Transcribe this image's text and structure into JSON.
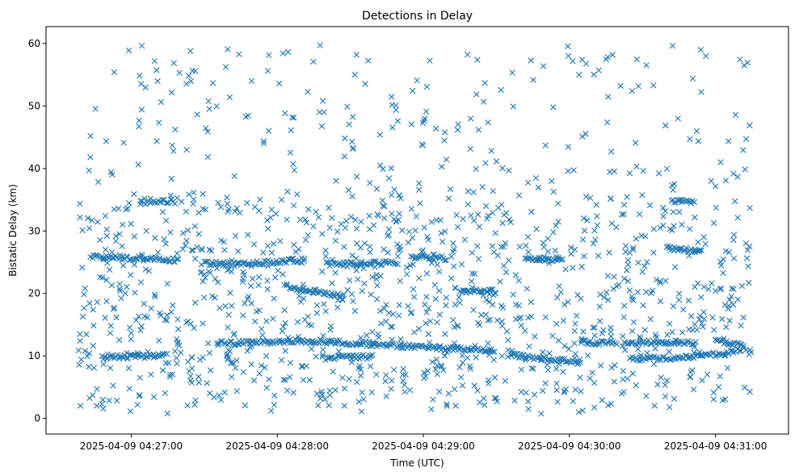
{
  "chart_data": {
    "type": "scatter",
    "title": "Detections in Delay",
    "xlabel": "Time (UTC)",
    "ylabel": "Bistatic Delay (km)",
    "x_ticks": [
      "2025-04-09 04:27:00",
      "2025-04-09 04:28:00",
      "2025-04-09 04:29:00",
      "2025-04-09 04:30:00",
      "2025-04-09 04:31:00"
    ],
    "y_ticks": [
      "0",
      "10",
      "20",
      "30",
      "40",
      "50",
      "60"
    ],
    "xlim": [
      "2025-04-09 04:26:25",
      "2025-04-09 04:31:30"
    ],
    "ylim": [
      -2.5,
      62.7
    ],
    "marker": "x",
    "color": "#1f77b4",
    "grid": false,
    "legend": "none",
    "series": [
      {
        "tracks": [
          {
            "x": [
              "2025-04-09 04:26:44",
              "2025-04-09 04:26:58",
              "2025-04-09 04:27:10",
              "2025-04-09 04:27:20"
            ],
            "y": [
              25.9,
              25.7,
              25.6,
              25.2
            ]
          },
          {
            "x": [
              "2025-04-09 04:27:30",
              "2025-04-09 04:27:45",
              "2025-04-09 04:28:00",
              "2025-04-09 04:28:12"
            ],
            "y": [
              24.9,
              24.6,
              25.1,
              25.4
            ]
          },
          {
            "x": [
              "2025-04-09 04:27:04",
              "2025-04-09 04:27:18"
            ],
            "y": [
              34.6,
              34.8
            ]
          },
          {
            "x": [
              "2025-04-09 04:28:03",
              "2025-04-09 04:28:15",
              "2025-04-09 04:28:28"
            ],
            "y": [
              21.2,
              20.3,
              19.5
            ]
          },
          {
            "x": [
              "2025-04-09 04:28:20",
              "2025-04-09 04:28:50"
            ],
            "y": [
              24.7,
              24.9
            ]
          },
          {
            "x": [
              "2025-04-09 04:28:55",
              "2025-04-09 04:29:10"
            ],
            "y": [
              25.9,
              25.6
            ]
          },
          {
            "x": [
              "2025-04-09 04:29:15",
              "2025-04-09 04:29:30"
            ],
            "y": [
              20.5,
              20.4
            ]
          },
          {
            "x": [
              "2025-04-09 04:29:42",
              "2025-04-09 04:29:58"
            ],
            "y": [
              25.6,
              25.4
            ]
          },
          {
            "x": [
              "2025-04-09 04:30:42",
              "2025-04-09 04:30:52"
            ],
            "y": [
              34.9,
              34.5
            ]
          },
          {
            "x": [
              "2025-04-09 04:30:40",
              "2025-04-09 04:30:55"
            ],
            "y": [
              27.1,
              26.8
            ]
          },
          {
            "x": [
              "2025-04-09 04:26:48",
              "2025-04-09 04:27:00",
              "2025-04-09 04:27:15"
            ],
            "y": [
              9.8,
              9.9,
              10.1
            ]
          },
          {
            "x": [
              "2025-04-09 04:27:35",
              "2025-04-09 04:27:50",
              "2025-04-09 04:28:10",
              "2025-04-09 04:28:30",
              "2025-04-09 04:28:50",
              "2025-04-09 04:29:10",
              "2025-04-09 04:29:30"
            ],
            "y": [
              12.0,
              12.1,
              12.4,
              12.1,
              11.6,
              11.2,
              10.8
            ]
          },
          {
            "x": [
              "2025-04-09 04:28:20",
              "2025-04-09 04:28:40"
            ],
            "y": [
              9.7,
              9.9
            ]
          },
          {
            "x": [
              "2025-04-09 04:29:35",
              "2025-04-09 04:29:50",
              "2025-04-09 04:30:05"
            ],
            "y": [
              10.2,
              9.6,
              8.9
            ]
          },
          {
            "x": [
              "2025-04-09 04:30:05",
              "2025-04-09 04:30:20"
            ],
            "y": [
              12.2,
              12.0
            ]
          },
          {
            "x": [
              "2025-04-09 04:30:22",
              "2025-04-09 04:30:32",
              "2025-04-09 04:30:52"
            ],
            "y": [
              11.9,
              12.2,
              12.1
            ]
          },
          {
            "x": [
              "2025-04-09 04:30:25",
              "2025-04-09 04:30:45",
              "2025-04-09 04:31:05",
              "2025-04-09 04:31:12"
            ],
            "y": [
              9.5,
              9.7,
              10.4,
              11.2
            ]
          },
          {
            "x": [
              "2025-04-09 04:31:00",
              "2025-04-09 04:31:12"
            ],
            "y": [
              12.3,
              11.8
            ]
          }
        ],
        "scattered_x_range": [
          "2025-04-09 04:26:38",
          "2025-04-09 04:31:15"
        ],
        "scattered_y_range": [
          0.7,
          59.8
        ]
      }
    ]
  }
}
